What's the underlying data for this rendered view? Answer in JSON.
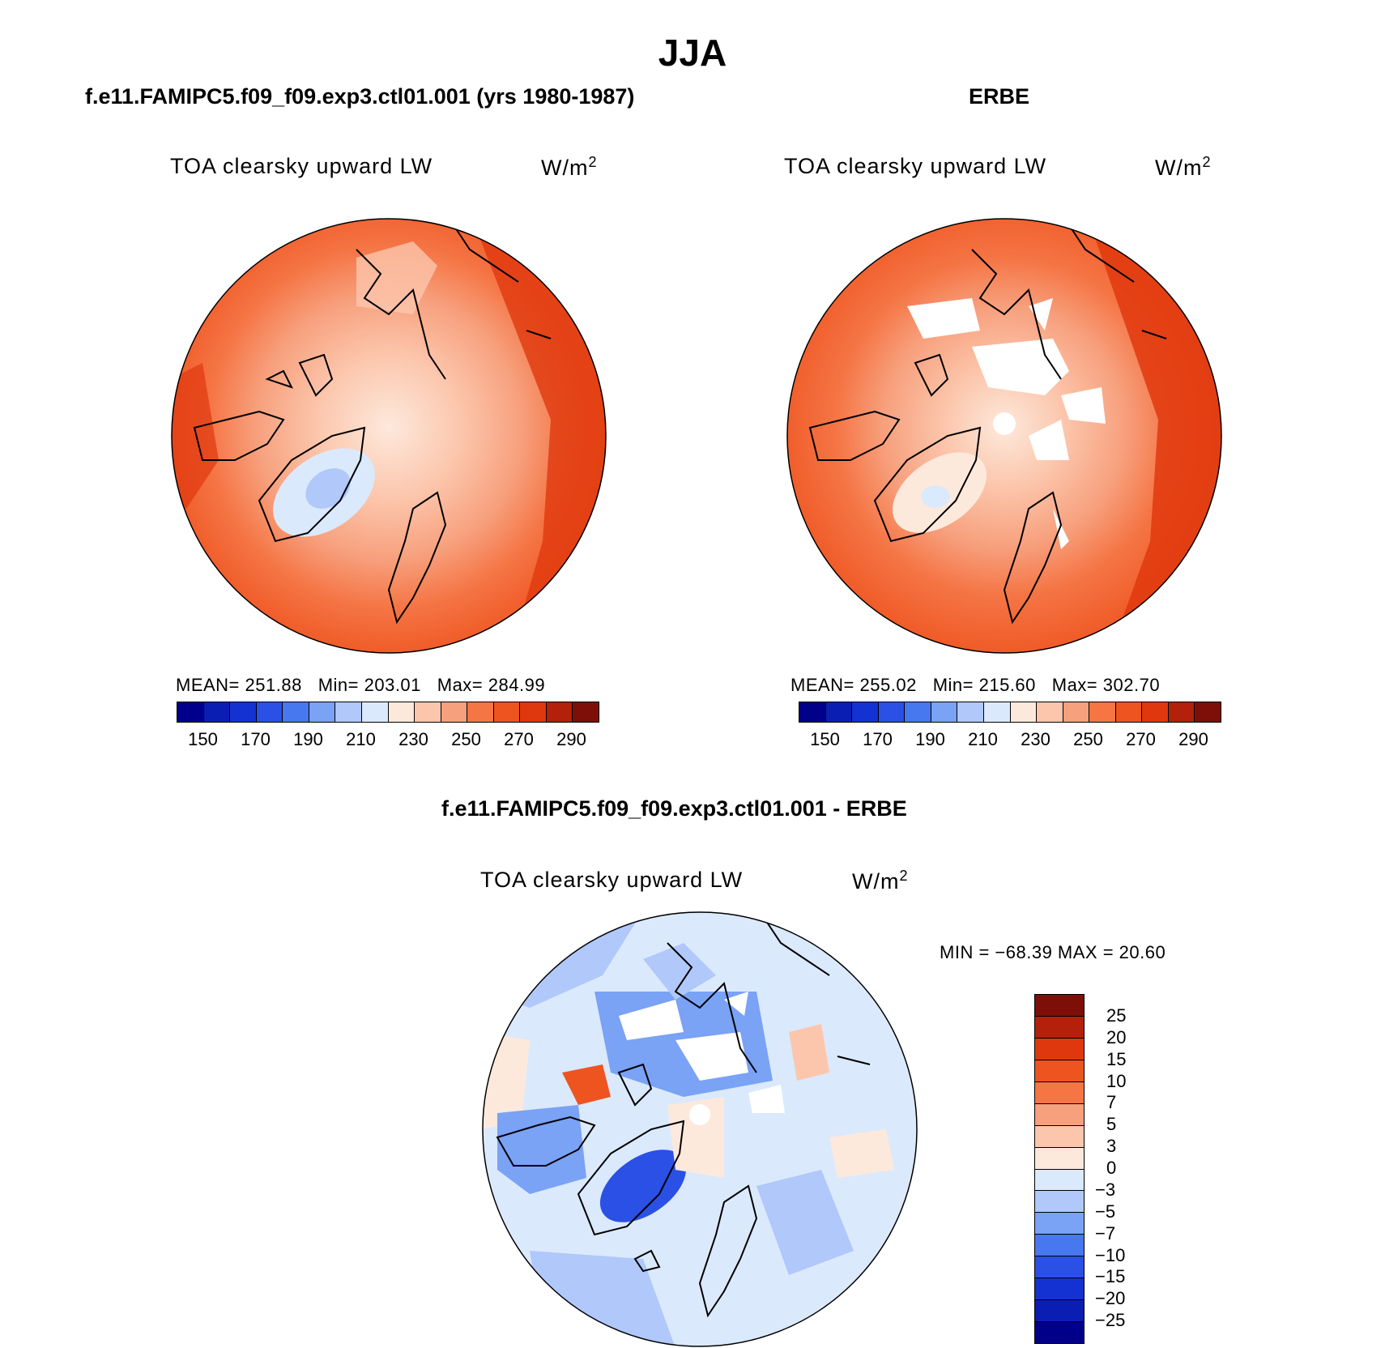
{
  "season": "JJA",
  "panels": [
    {
      "heading": "f.e11.FAMIPC5.f09_f09.exp3.ctl01.001 (yrs 1980-1987)",
      "variable": "TOA clearsky upward LW",
      "units": "W/m",
      "units_sup": "2",
      "mean_label": "MEAN=",
      "mean": "251.88",
      "min_label": "Min=",
      "min": "203.01",
      "max_label": "Max=",
      "max": "284.99"
    },
    {
      "heading": "ERBE",
      "variable": "TOA clearsky upward LW",
      "units": "W/m",
      "units_sup": "2",
      "mean_label": "MEAN=",
      "mean": "255.02",
      "min_label": "Min=",
      "min": "215.60",
      "max_label": "Max=",
      "max": "302.70"
    },
    {
      "heading": "f.e11.FAMIPC5.f09_f09.exp3.ctl01.001 - ERBE",
      "variable": "TOA clearsky upward LW",
      "units": "W/m",
      "units_sup": "2",
      "range_text": "MIN = −68.39 MAX =  20.60"
    }
  ],
  "abs_colorbar": {
    "colors": [
      "#00008b",
      "#0a1eb4",
      "#1432d2",
      "#2a50e6",
      "#4878f0",
      "#7aa2f5",
      "#b0c8fa",
      "#dbe9fc",
      "#fde9dc",
      "#fcc6ac",
      "#f7a07d",
      "#f57545",
      "#ee5420",
      "#e0380e",
      "#b4210a",
      "#7d0f08"
    ],
    "ticks": [
      "150",
      "170",
      "190",
      "210",
      "230",
      "250",
      "270",
      "290"
    ]
  },
  "diff_colorbar": {
    "colors": [
      "#7d0f08",
      "#b4210a",
      "#e0380e",
      "#ee5420",
      "#f57545",
      "#f7a07d",
      "#fcc6ac",
      "#fde9dc",
      "#dbe9fc",
      "#b0c8fa",
      "#7aa2f5",
      "#4878f0",
      "#2a50e6",
      "#1432d2",
      "#0a1eb4",
      "#00008b"
    ],
    "ticks": [
      "25",
      "20",
      "15",
      "10",
      "7",
      "5",
      "3",
      "0",
      "−3",
      "−5",
      "−7",
      "−10",
      "−15",
      "−20",
      "−25"
    ]
  },
  "map_colors": {
    "warm_edge": "#e0380e",
    "warm": "#ee5420",
    "mid": "#f57545",
    "light": "#f7a07d",
    "pale": "#fcc6ac",
    "cream": "#fde9dc",
    "blue_pale": "#dbe9fc",
    "blue_light": "#b0c8fa",
    "blue_mid": "#7aa2f5",
    "blue_strong": "#2a50e6"
  }
}
